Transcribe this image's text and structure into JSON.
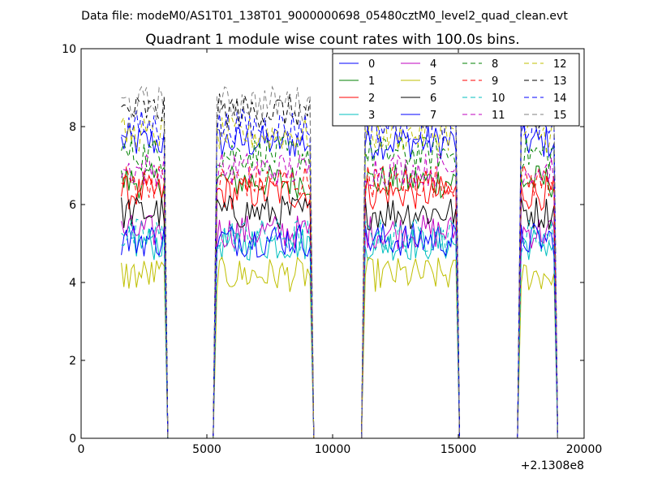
{
  "chart_data": {
    "type": "line",
    "suptitle": "Data file: modeM0/AS1T01_138T01_9000000698_05480cztM0_level2_quad_clean.evt",
    "title": "Quadrant 1 module wise count rates with 100.0s bins.",
    "xlabel": "",
    "ylabel": "",
    "x_offset_label": "+2.1308e8",
    "xlim": [
      0,
      20000
    ],
    "ylim": [
      0,
      10
    ],
    "x_ticks": [
      0,
      5000,
      10000,
      15000,
      20000
    ],
    "x_tick_labels": [
      "0",
      "5000",
      "10000",
      "15000",
      "20000"
    ],
    "y_ticks": [
      0,
      2,
      4,
      6,
      8,
      10
    ],
    "y_tick_labels": [
      "0",
      "2",
      "4",
      "6",
      "8",
      "10"
    ],
    "legend_position": "top-right",
    "legend_columns": 4,
    "segments": [
      {
        "start": 1600,
        "end": 3300
      },
      {
        "start": 5400,
        "end": 9100
      },
      {
        "start": 11300,
        "end": 14900
      },
      {
        "start": 17500,
        "end": 18800
      }
    ],
    "off_value": 0,
    "series": [
      {
        "name": "0",
        "color": "#0000ff",
        "dash": "solid",
        "mean_rate": 7.6
      },
      {
        "name": "1",
        "color": "#008000",
        "dash": "solid",
        "mean_rate": 6.6
      },
      {
        "name": "2",
        "color": "#ff0000",
        "dash": "solid",
        "mean_rate": 6.3
      },
      {
        "name": "3",
        "color": "#00bfbf",
        "dash": "solid",
        "mean_rate": 5.0
      },
      {
        "name": "4",
        "color": "#bf00bf",
        "dash": "solid",
        "mean_rate": 5.3
      },
      {
        "name": "5",
        "color": "#bfbf00",
        "dash": "solid",
        "mean_rate": 4.2
      },
      {
        "name": "6",
        "color": "#000000",
        "dash": "solid",
        "mean_rate": 5.8
      },
      {
        "name": "7",
        "color": "#0000ff",
        "dash": "solid",
        "mean_rate": 5.1
      },
      {
        "name": "8",
        "color": "#008000",
        "dash": "dashed",
        "mean_rate": 7.3
      },
      {
        "name": "9",
        "color": "#ff0000",
        "dash": "dashed",
        "mean_rate": 6.6
      },
      {
        "name": "10",
        "color": "#00bfbf",
        "dash": "dashed",
        "mean_rate": 5.2
      },
      {
        "name": "11",
        "color": "#bf00bf",
        "dash": "dashed",
        "mean_rate": 6.9
      },
      {
        "name": "12",
        "color": "#bfbf00",
        "dash": "dashed",
        "mean_rate": 7.8
      },
      {
        "name": "13",
        "color": "#000000",
        "dash": "dashed",
        "mean_rate": 8.4
      },
      {
        "name": "14",
        "color": "#0000ff",
        "dash": "dashed",
        "mean_rate": 8.0
      },
      {
        "name": "15",
        "color": "#808080",
        "dash": "dashed",
        "mean_rate": 8.6
      }
    ]
  }
}
